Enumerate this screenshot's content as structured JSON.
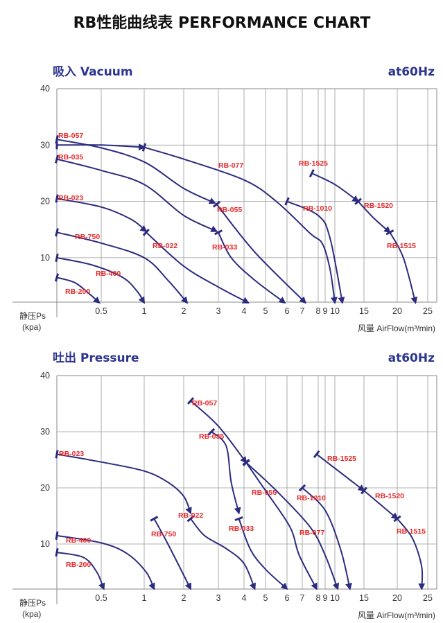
{
  "title": "RB性能曲线表 PERFORMANCE CHART",
  "colors": {
    "curve": "#2b2b80",
    "label": "#e8282a",
    "header": "#2c3590"
  },
  "chart_data": [
    {
      "type": "line",
      "title": "吸入 Vacuum",
      "frequency": "at60Hz",
      "ylabel": "静压Ps",
      "yunit": "(kpa)",
      "xlabel": "风量 AirFlow(m³/min)",
      "ylim": [
        0,
        40
      ],
      "yticks": [
        "40",
        "30",
        "20",
        "10"
      ],
      "xticks": [
        "0.5",
        "1",
        "2",
        "3",
        "4",
        "5",
        "6",
        "7",
        "8",
        "9",
        "10",
        "15",
        "20",
        "25"
      ],
      "grid": true,
      "curves": [
        {
          "name": "RB-200",
          "points": [
            [
              0,
              6.5
            ],
            [
              0.2,
              5.6
            ],
            [
              0.35,
              3.8
            ],
            [
              0.48,
              2
            ]
          ]
        },
        {
          "name": "RB-400",
          "points": [
            [
              0,
              10
            ],
            [
              0.4,
              8.7
            ],
            [
              0.75,
              6.5
            ],
            [
              0.92,
              4
            ],
            [
              1,
              2
            ]
          ]
        },
        {
          "name": "RB-750",
          "points": [
            [
              0,
              14.5
            ],
            [
              0.5,
              12.6
            ],
            [
              1,
              10
            ],
            [
              1.6,
              6
            ],
            [
              2.1,
              2
            ]
          ]
        },
        {
          "name": "RB-023",
          "points": [
            [
              0,
              20.5
            ],
            [
              0.5,
              19
            ],
            [
              0.85,
              16.8
            ],
            [
              1.05,
              14.7
            ]
          ]
        },
        {
          "name": "RB-022",
          "points": [
            [
              1.05,
              14.5
            ],
            [
              2,
              8.5
            ],
            [
              3,
              4.8
            ],
            [
              4.2,
              2
            ]
          ]
        },
        {
          "name": "RB-035",
          "points": [
            [
              0,
              27.5
            ],
            [
              0.5,
              25.5
            ],
            [
              1,
              23
            ],
            [
              2,
              17.5
            ],
            [
              2.95,
              14.7
            ]
          ]
        },
        {
          "name": "RB-033",
          "points": [
            [
              3,
              14.5
            ],
            [
              3.5,
              10
            ],
            [
              4.5,
              6
            ],
            [
              5.9,
              2
            ]
          ]
        },
        {
          "name": "RB-057",
          "points": [
            [
              0,
              31
            ],
            [
              0.5,
              29.5
            ],
            [
              1,
              27
            ],
            [
              2,
              22.3
            ],
            [
              2.9,
              19.7
            ]
          ]
        },
        {
          "name": "RB-055",
          "points": [
            [
              2.95,
              19.5
            ],
            [
              4.5,
              11
            ],
            [
              7.2,
              2
            ]
          ]
        },
        {
          "name": "",
          "points": [
            [
              0,
              30
            ],
            [
              0.5,
              30
            ],
            [
              1,
              29.6
            ]
          ]
        },
        {
          "name": "RB-077",
          "points": [
            [
              1,
              29.6
            ],
            [
              2,
              27.5
            ],
            [
              4,
              23.8
            ],
            [
              5.5,
              20
            ],
            [
              7.5,
              14.3
            ],
            [
              8.6,
              12.5
            ],
            [
              9.5,
              8
            ],
            [
              10,
              2
            ]
          ]
        },
        {
          "name": "RB-1010",
          "points": [
            [
              6,
              20
            ],
            [
              8,
              17.5
            ],
            [
              9.5,
              13.5
            ],
            [
              11.3,
              2
            ]
          ]
        },
        {
          "name": "RB-1525",
          "points": [
            [
              7.6,
              25
            ],
            [
              10,
              23
            ],
            [
              14,
              20
            ]
          ]
        },
        {
          "name": "RB-1520",
          "points": [
            [
              14,
              20
            ],
            [
              16.5,
              17
            ],
            [
              18.9,
              14.5
            ]
          ]
        },
        {
          "name": "RB-1515",
          "points": [
            [
              18.9,
              14.5
            ],
            [
              21,
              10
            ],
            [
              23,
              2
            ]
          ]
        }
      ]
    },
    {
      "type": "line",
      "title": "吐出 Pressure",
      "frequency": "at60Hz",
      "ylabel": "静压Ps",
      "yunit": "(kpa)",
      "xlabel": "风量 AirFlow(m³/min)",
      "ylim": [
        0,
        40
      ],
      "yticks": [
        "40",
        "30",
        "20",
        "10"
      ],
      "xticks": [
        "0.5",
        "1",
        "2",
        "3",
        "4",
        "5",
        "6",
        "7",
        "8",
        "9",
        "10",
        "15",
        "20",
        "25"
      ],
      "grid": true,
      "curves": [
        {
          "name": "RB-200",
          "points": [
            [
              0,
              8.5
            ],
            [
              0.3,
              7.6
            ],
            [
              0.45,
              5
            ],
            [
              0.53,
              2
            ]
          ]
        },
        {
          "name": "RB-400",
          "points": [
            [
              0,
              11.5
            ],
            [
              0.5,
              10.2
            ],
            [
              0.8,
              8.3
            ],
            [
              1.05,
              5
            ],
            [
              1.25,
              2
            ]
          ]
        },
        {
          "name": "RB-023",
          "points": [
            [
              0,
              26
            ],
            [
              0.5,
              24.6
            ],
            [
              1,
              23
            ],
            [
              1.6,
              21
            ],
            [
              2,
              18.5
            ],
            [
              2.2,
              15.5
            ]
          ]
        },
        {
          "name": "RB-022",
          "points": [
            [
              2.2,
              14.5
            ],
            [
              2.6,
              11.5
            ],
            [
              3.3,
              9.2
            ],
            [
              4,
              6.5
            ],
            [
              4.5,
              2
            ]
          ]
        },
        {
          "name": "RB-750",
          "points": [
            [
              1.25,
              14.5
            ],
            [
              1.6,
              10
            ],
            [
              2.2,
              2
            ]
          ]
        },
        {
          "name": "RB-057",
          "points": [
            [
              2.2,
              35.5
            ],
            [
              3,
              31
            ],
            [
              4.1,
              24.5
            ]
          ]
        },
        {
          "name": "RB-055",
          "points": [
            [
              4.1,
              24.5
            ],
            [
              5,
              19.5
            ],
            [
              6.2,
              13
            ],
            [
              6.8,
              8
            ],
            [
              7.9,
              2
            ]
          ]
        },
        {
          "name": "RB-077",
          "points": [
            [
              4.1,
              24.5
            ],
            [
              5.5,
              19.5
            ],
            [
              7.5,
              13
            ],
            [
              9,
              8
            ],
            [
              10.5,
              2
            ]
          ]
        },
        {
          "name": "RB-035",
          "points": [
            [
              2.8,
              30
            ],
            [
              3.3,
              27.5
            ],
            [
              3.5,
              21
            ],
            [
              3.8,
              15.5
            ]
          ]
        },
        {
          "name": "RB-033",
          "points": [
            [
              3.8,
              14.5
            ],
            [
              4.3,
              9
            ],
            [
              5,
              5.5
            ],
            [
              6,
              2
            ]
          ]
        },
        {
          "name": "RB-1010",
          "points": [
            [
              7,
              20
            ],
            [
              9,
              16
            ],
            [
              11,
              9
            ],
            [
              12.6,
              2
            ]
          ]
        },
        {
          "name": "RB-1525",
          "points": [
            [
              7.9,
              26
            ],
            [
              15,
              19.5
            ]
          ]
        },
        {
          "name": "RB-1520",
          "points": [
            [
              15,
              19.5
            ],
            [
              20,
              14.5
            ]
          ]
        },
        {
          "name": "RB-1515",
          "points": [
            [
              20,
              14.5
            ],
            [
              22.5,
              11
            ],
            [
              24,
              6
            ],
            [
              24,
              2
            ]
          ]
        }
      ]
    }
  ]
}
